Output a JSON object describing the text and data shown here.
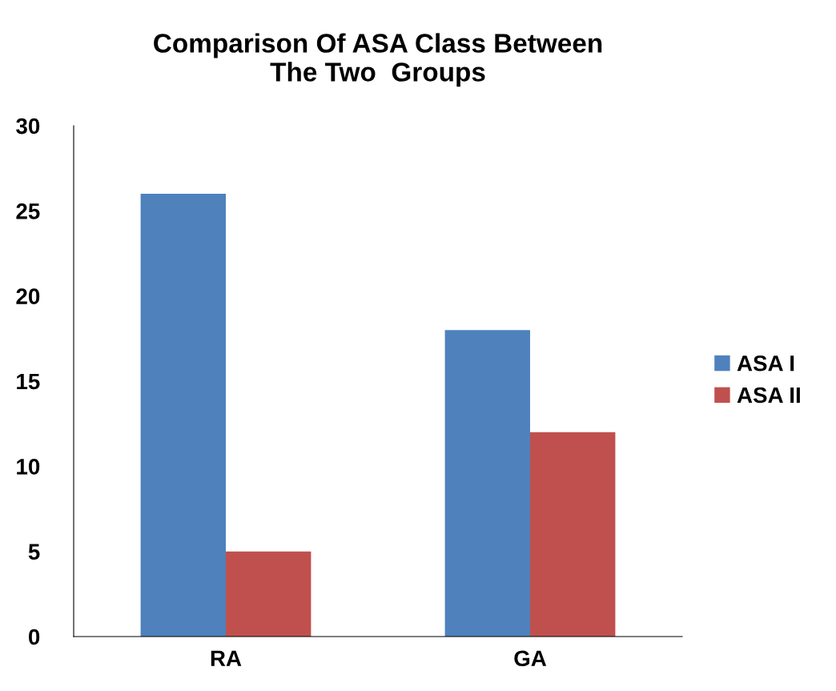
{
  "chart_data": {
    "type": "bar",
    "title": "Comparison Of ASA Class Between\nThe Two  Groups",
    "categories": [
      "RA",
      "GA"
    ],
    "series": [
      {
        "name": "ASA I",
        "color": "#4f81bd",
        "values": [
          26,
          18
        ]
      },
      {
        "name": "ASA II",
        "color": "#c0504d",
        "values": [
          5,
          12
        ]
      }
    ],
    "ylim": [
      0,
      30
    ],
    "yticks": [
      0,
      5,
      10,
      15,
      20,
      25,
      30
    ],
    "grid": false,
    "legend": "right"
  }
}
